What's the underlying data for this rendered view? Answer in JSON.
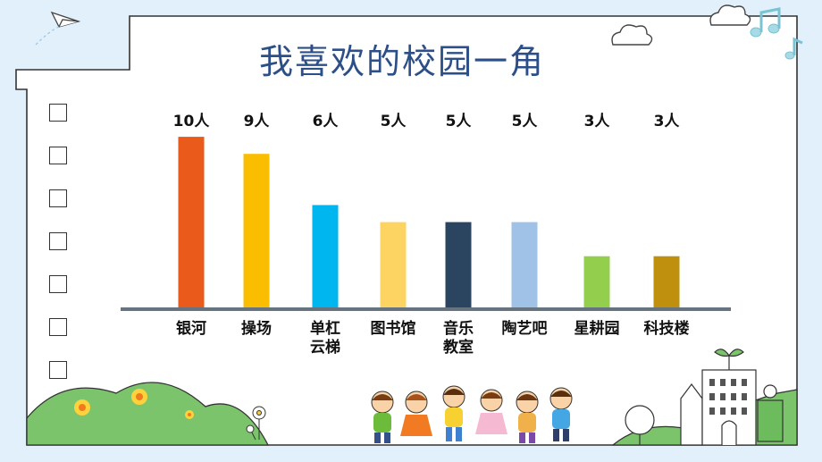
{
  "chart_data": {
    "type": "bar",
    "title": "我喜欢的校园一角",
    "unit": "人",
    "categories": [
      "银河",
      "操场",
      "单杠\n云梯",
      "图书馆",
      "音乐\n教室",
      "陶艺吧",
      "星耕园",
      "科技楼"
    ],
    "values": [
      10,
      9,
      6,
      5,
      5,
      5,
      3,
      3
    ],
    "value_labels": [
      "10人",
      "9人",
      "6人",
      "5人",
      "5人",
      "5人",
      "3人",
      "3人"
    ],
    "colors": [
      "#ea5a1b",
      "#fbbd00",
      "#00b6ef",
      "#fdd462",
      "#2b4560",
      "#a0c2e7",
      "#93cf4c",
      "#bf900d"
    ],
    "ylim": [
      0,
      11
    ],
    "grid": false,
    "legend": "none"
  },
  "theme": {
    "background": "#e2f0fb",
    "frame": "#ffffff",
    "axis": "#687380",
    "title_color": "#2d4f88"
  },
  "decor_icons": [
    "paper-plane-icon",
    "cloud-icon",
    "music-note-icon",
    "flower-icon",
    "children-icon",
    "school-building-icon",
    "tree-icon"
  ]
}
